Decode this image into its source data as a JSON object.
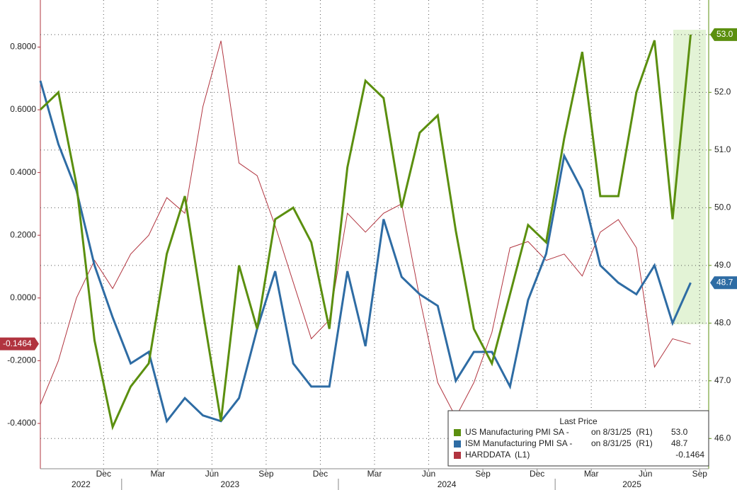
{
  "chart_data": {
    "type": "line",
    "categories": [
      null,
      null,
      null,
      null,
      "Dec",
      null,
      null,
      "Mar",
      null,
      null,
      "Jun",
      null,
      null,
      "Sep",
      null,
      null,
      "Dec",
      null,
      null,
      "Mar",
      null,
      null,
      "Jun",
      null,
      null,
      "Sep",
      null,
      null,
      "Dec",
      null,
      null,
      "Mar",
      null,
      null,
      "Jun",
      null,
      null,
      "Sep"
    ],
    "year_labels": [
      "2022",
      "2023",
      "2024",
      "2025"
    ],
    "ylim": [
      -0.54,
      0.95
    ],
    "yticks": [
      {
        "value": -0.4,
        "label": "-0.4000"
      },
      {
        "value": -0.2,
        "label": "-0.2000"
      },
      {
        "value": 0,
        "label": "0.0000"
      },
      {
        "value": 0.2,
        "label": "0.2000"
      },
      {
        "value": 0.4,
        "label": "0.4000"
      },
      {
        "value": 0.6,
        "label": "0.6000"
      },
      {
        "value": 0.8,
        "label": "0.8000"
      }
    ],
    "y2lim": [
      45.5,
      53.6
    ],
    "y2ticks": [
      {
        "value": 46,
        "label": "46.0"
      },
      {
        "value": 47,
        "label": "47.0"
      },
      {
        "value": 48,
        "label": "48.0"
      },
      {
        "value": 49,
        "label": "49.0"
      },
      {
        "value": 50,
        "label": "50.0"
      },
      {
        "value": 51,
        "label": "51.0"
      },
      {
        "value": 52,
        "label": "52.0"
      },
      {
        "value": 53,
        "label": "53.0"
      }
    ],
    "grid": true,
    "legend": {
      "title": "Last Price",
      "position": "bottom-right"
    },
    "series": [
      {
        "name": "US Manufacturing PMI SA -",
        "detail": "on 8/31/25  (R1)",
        "last_label": "53.0",
        "color": "#5b8f0f",
        "axis": "y2",
        "values": [
          51.7,
          52.0,
          50.4,
          47.7,
          46.2,
          46.9,
          47.3,
          49.2,
          50.2,
          48.2,
          46.3,
          49.0,
          47.9,
          49.8,
          50.0,
          49.4,
          47.9,
          50.7,
          52.2,
          51.9,
          50.0,
          51.3,
          51.6,
          49.6,
          47.9,
          47.3,
          48.5,
          49.7,
          49.4,
          51.2,
          52.7,
          50.2,
          50.2,
          52.0,
          52.9,
          49.8,
          53.0,
          null
        ]
      },
      {
        "name": "ISM Manufacturing PMI SA -",
        "detail": "on 8/31/25  (R1)",
        "last_label": "48.7",
        "color": "#2e6ca4",
        "axis": "y2",
        "values": [
          52.2,
          51.1,
          50.3,
          49.0,
          48.1,
          47.3,
          47.5,
          46.3,
          46.7,
          46.4,
          46.3,
          46.7,
          47.9,
          48.9,
          47.3,
          46.9,
          46.9,
          48.9,
          47.6,
          49.8,
          48.8,
          48.5,
          48.3,
          47.0,
          47.5,
          47.5,
          46.9,
          48.4,
          49.2,
          50.9,
          50.3,
          49.0,
          48.7,
          48.5,
          49.0,
          48.0,
          48.7,
          null
        ]
      },
      {
        "name": "HARDDATA",
        "detail": "(L1)",
        "last_label": "-0.1464",
        "color": "#b1343f",
        "axis": "y",
        "values": [
          -0.34,
          -0.2,
          0.0,
          0.12,
          0.03,
          0.14,
          0.2,
          0.32,
          0.27,
          0.61,
          0.82,
          0.43,
          0.39,
          0.23,
          0.05,
          -0.13,
          -0.07,
          0.27,
          0.21,
          0.27,
          0.3,
          0.0,
          -0.27,
          -0.38,
          -0.27,
          -0.11,
          0.16,
          0.18,
          0.12,
          0.14,
          0.07,
          0.21,
          0.25,
          0.16,
          -0.22,
          -0.13,
          -0.1464,
          null
        ]
      }
    ]
  }
}
